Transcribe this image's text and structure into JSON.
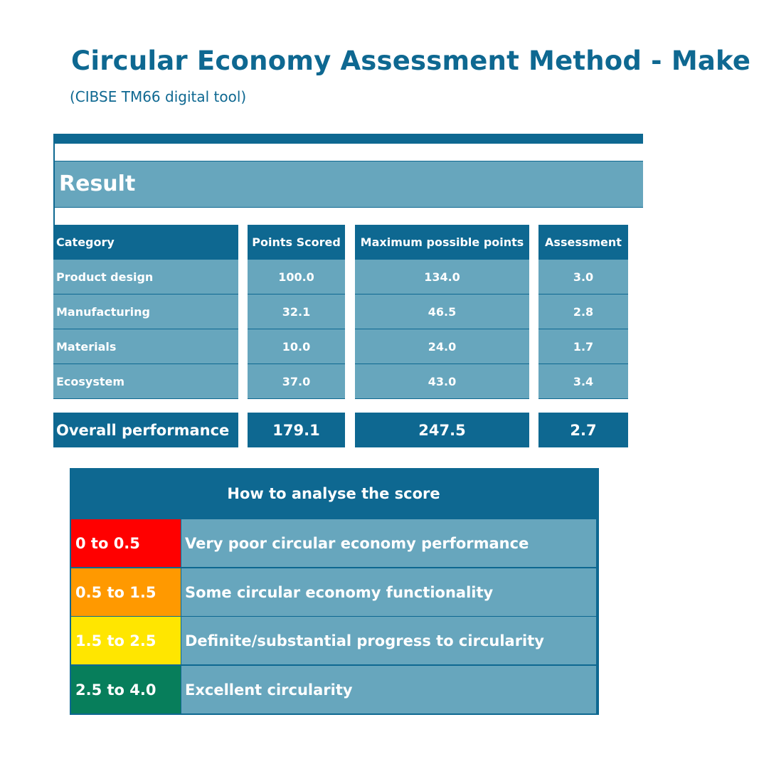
{
  "header": {
    "title": "Circular Economy Assessment Method - Make",
    "subtitle": "(CIBSE TM66 digital tool)"
  },
  "result": {
    "title": "Result",
    "columns": [
      "Category",
      "Points Scored",
      "Maximum possible points",
      "Assessment"
    ],
    "rows": [
      {
        "category": "Product design",
        "points": "100.0",
        "max": "134.0",
        "assessment": "3.0"
      },
      {
        "category": "Manufacturing",
        "points": "32.1",
        "max": "46.5",
        "assessment": "2.8"
      },
      {
        "category": "Materials",
        "points": "10.0",
        "max": "24.0",
        "assessment": "1.7"
      },
      {
        "category": "Ecosystem",
        "points": "37.0",
        "max": "43.0",
        "assessment": "3.4"
      }
    ],
    "overall": {
      "label": "Overall performance",
      "points": "179.1",
      "max": "247.5",
      "assessment": "2.7"
    }
  },
  "legend": {
    "title": "How to analyse the score",
    "items": [
      {
        "range": "0 to 0.5",
        "description": "Very poor circular economy performance",
        "color": "#ff0000"
      },
      {
        "range": "0.5 to 1.5",
        "description": "Some circular economy functionality",
        "color": "#ff9900"
      },
      {
        "range": "1.5 to 2.5",
        "description": "Definite/substantial progress to circularity",
        "color": "#ffe600"
      },
      {
        "range": "2.5 to 4.0",
        "description": "Excellent circularity",
        "color": "#077e5b"
      }
    ]
  },
  "colors": {
    "primary": "#0e6891",
    "cell": "#67a6bd",
    "text_on_dark": "#ffffff"
  }
}
